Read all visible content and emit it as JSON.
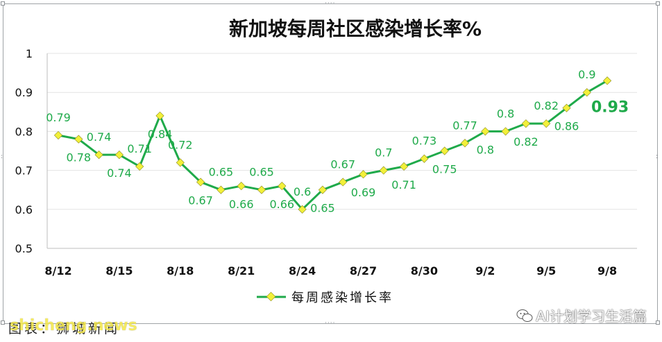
{
  "chart_data": {
    "type": "line",
    "title": "新加坡每周社区感染增长率%",
    "categories": [
      "8/12",
      "8/13",
      "8/14",
      "8/15",
      "8/16",
      "8/17",
      "8/18",
      "8/19",
      "8/20",
      "8/21",
      "8/22",
      "8/23",
      "8/24",
      "8/25",
      "8/26",
      "8/27",
      "8/28",
      "8/29",
      "8/30",
      "8/31",
      "9/1",
      "9/2",
      "9/3",
      "9/4",
      "9/5",
      "9/6",
      "9/7",
      "9/8"
    ],
    "x_tick_labels": [
      "8/12",
      "8/15",
      "8/18",
      "8/21",
      "8/24",
      "8/27",
      "8/30",
      "9/2",
      "9/5",
      "9/8"
    ],
    "y_ticks": [
      "0.5",
      "0.6",
      "0.7",
      "0.8",
      "0.9",
      "1"
    ],
    "ylim": [
      0.5,
      1
    ],
    "series": [
      {
        "name": "每周感染增长率",
        "values": [
          0.79,
          0.78,
          0.74,
          0.74,
          0.71,
          0.84,
          0.72,
          0.67,
          0.65,
          0.66,
          0.65,
          0.66,
          0.6,
          0.65,
          0.67,
          0.69,
          0.7,
          0.71,
          0.73,
          0.75,
          0.77,
          0.8,
          0.8,
          0.82,
          0.82,
          0.86,
          0.9,
          0.93
        ],
        "labels": [
          "0.79",
          "0.78",
          "0.74",
          "0.74",
          "0.71",
          "0.84",
          "0.72",
          "0.67",
          "0.65",
          "0.66",
          "0.65",
          "0.66",
          "0.6",
          "0.65",
          "0.67",
          "0.69",
          "0.7",
          "0.71",
          "0.73",
          "0.75",
          "0.77",
          "0.8",
          "0.8",
          "0.82",
          "0.82",
          "0.86",
          "0.9",
          "0.93"
        ],
        "color": "#1faa4a",
        "marker_color": "#f2f03a"
      }
    ],
    "grid": true,
    "legend_position": "bottom"
  },
  "watermark": {
    "text": "AI计划学习生活篇",
    "icon": "wechat-icon"
  },
  "source_text": "图表：狮城新闻",
  "site_text": "shicheng.news"
}
